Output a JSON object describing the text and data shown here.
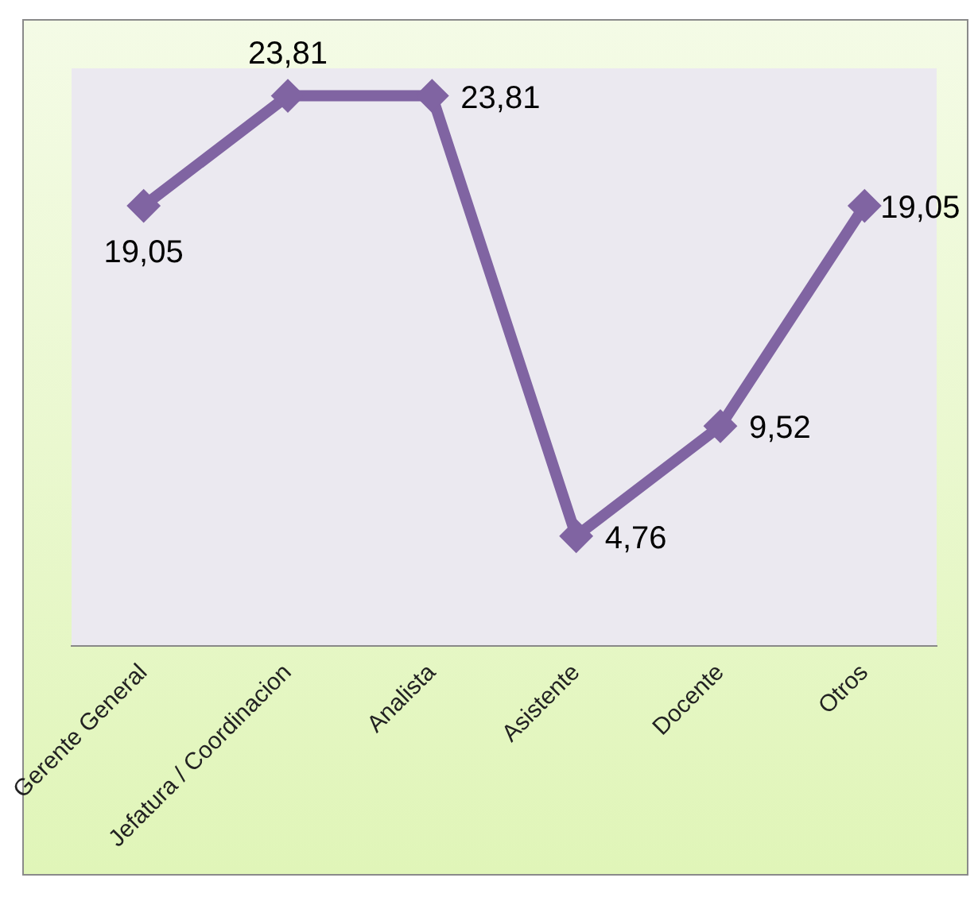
{
  "chart_data": {
    "type": "line",
    "categories": [
      "Gerente General",
      "Jefatura / Coordinacion",
      "Analista",
      "Asistente",
      "Docente",
      "Otros"
    ],
    "series": [
      {
        "color": "#8064a2",
        "values": [
          19.05,
          23.81,
          23.81,
          4.76,
          9.52,
          19.05
        ],
        "value_labels": [
          "19,05",
          "23,81",
          "23,81",
          "4,76",
          "9,52",
          "19,05"
        ]
      }
    ],
    "tick_labels": "x",
    "marker": "diamond",
    "grid": false,
    "legend": false
  }
}
